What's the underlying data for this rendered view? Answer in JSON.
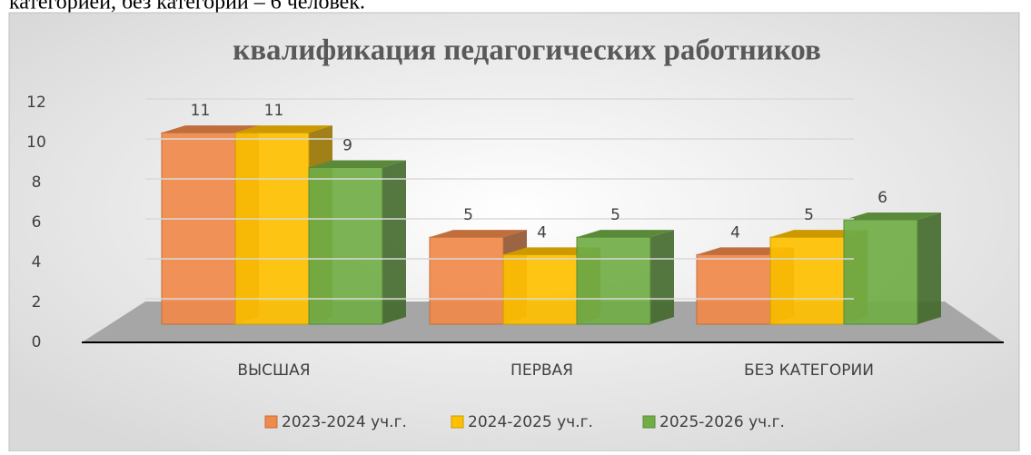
{
  "caption_fragment": "категорией, без категории – 6 человек.",
  "chart_data": {
    "type": "bar3d",
    "title": "квалификация педагогических работников",
    "categories": [
      "ВЫСШАЯ",
      "ПЕРВАЯ",
      "БЕЗ КАТЕГОРИИ"
    ],
    "series": [
      {
        "name": "2023-2024 уч.г.",
        "color": "#f08a4b",
        "values": [
          11,
          5,
          4
        ]
      },
      {
        "name": "2024-2025 уч.г.",
        "color": "#ffc000",
        "values": [
          11,
          4,
          5
        ]
      },
      {
        "name": "2025-2026 уч.г.",
        "color": "#70ad47",
        "values": [
          9,
          5,
          6
        ]
      }
    ],
    "ylim": [
      0,
      12
    ],
    "yticks": [
      0,
      2,
      4,
      6,
      8,
      10,
      12
    ],
    "grid": true,
    "legend": "bottom"
  }
}
